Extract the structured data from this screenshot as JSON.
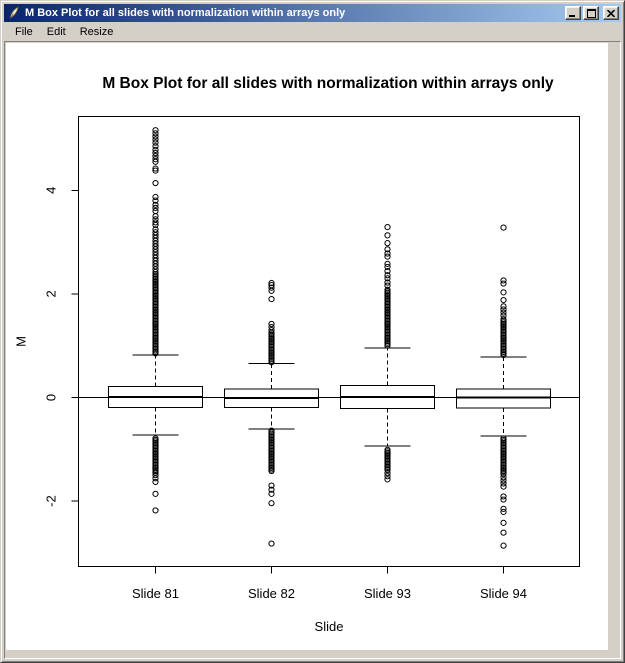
{
  "window": {
    "title": "M Box Plot for all slides with normalization within arrays only",
    "icon": "feather-icon",
    "controls": {
      "minimize": "minimize",
      "maximize": "maximize",
      "close": "close"
    }
  },
  "menu": {
    "items": [
      "File",
      "Edit",
      "Resize"
    ]
  },
  "colors": {
    "titlebar_gradient_start": "#0a246a",
    "titlebar_gradient_end": "#a6caf0",
    "frame": "#d4d0c8",
    "surface_bg": "#ffffff",
    "plot_fg": "#000000"
  },
  "chart_data": {
    "type": "boxplot",
    "title": "M Box Plot for all slides with normalization within arrays only",
    "xlabel": "Slide",
    "ylabel": "M",
    "yticks": [
      4,
      2,
      0,
      -2
    ],
    "ylim_drawn": [
      -3.25,
      5.45
    ],
    "reference_line_y": 0,
    "grid": false,
    "categories": [
      "Slide 81",
      "Slide 82",
      "Slide 93",
      "Slide 94"
    ],
    "series": [
      {
        "label": "Slide 81",
        "q1": -0.19,
        "median": 0.01,
        "q3": 0.21,
        "whisker_low": -0.72,
        "whisker_high": 0.82,
        "outliers": [
          {
            "from": 0.85,
            "to": 2.4,
            "step": 0.03
          },
          {
            "from": 2.42,
            "to": 3.25,
            "step": 0.055
          },
          3.33,
          3.38,
          3.44,
          3.5,
          3.6,
          3.66,
          3.72,
          3.8,
          3.87,
          4.14,
          4.38,
          4.42,
          4.55,
          4.6,
          4.66,
          4.72,
          4.78,
          4.85,
          4.92,
          4.98,
          5.04,
          5.1,
          5.16,
          {
            "from": -0.78,
            "to": -1.45,
            "step": 0.03
          },
          -1.5,
          -1.56,
          -1.63,
          -1.86,
          -2.18
        ]
      },
      {
        "label": "Slide 82",
        "q1": -0.19,
        "median": -0.01,
        "q3": 0.165,
        "whisker_low": -0.61,
        "whisker_high": 0.66,
        "outliers": [
          {
            "from": 0.68,
            "to": 1.26,
            "step": 0.03
          },
          1.3,
          1.36,
          1.42,
          1.9,
          2.06,
          2.12,
          2.17,
          2.21,
          {
            "from": -0.63,
            "to": -1.42,
            "step": 0.03
          },
          -1.7,
          -1.78,
          -1.86,
          -2.04,
          -2.82
        ]
      },
      {
        "label": "Slide 93",
        "q1": -0.21,
        "median": 0.01,
        "q3": 0.23,
        "whisker_low": -0.94,
        "whisker_high": 0.96,
        "outliers": [
          {
            "from": 1.0,
            "to": 2.1,
            "step": 0.03
          },
          2.16,
          2.22,
          2.3,
          2.36,
          2.44,
          2.52,
          2.58,
          2.72,
          2.78,
          2.86,
          2.98,
          3.13,
          3.29,
          {
            "from": -1.0,
            "to": -1.4,
            "step": 0.03
          },
          -1.46,
          -1.52,
          -1.58
        ]
      },
      {
        "label": "Slide 94",
        "q1": -0.2,
        "median": 0.0,
        "q3": 0.165,
        "whisker_low": -0.74,
        "whisker_high": 0.78,
        "outliers": [
          {
            "from": 0.82,
            "to": 1.52,
            "step": 0.03
          },
          1.58,
          1.64,
          1.7,
          1.76,
          1.88,
          2.03,
          2.2,
          2.26,
          3.28,
          {
            "from": -0.78,
            "to": -1.48,
            "step": 0.03
          },
          -1.54,
          -1.6,
          -1.66,
          -1.72,
          -1.91,
          -1.97,
          -2.15,
          -2.21,
          -2.42,
          -2.61,
          -2.86
        ]
      }
    ]
  }
}
